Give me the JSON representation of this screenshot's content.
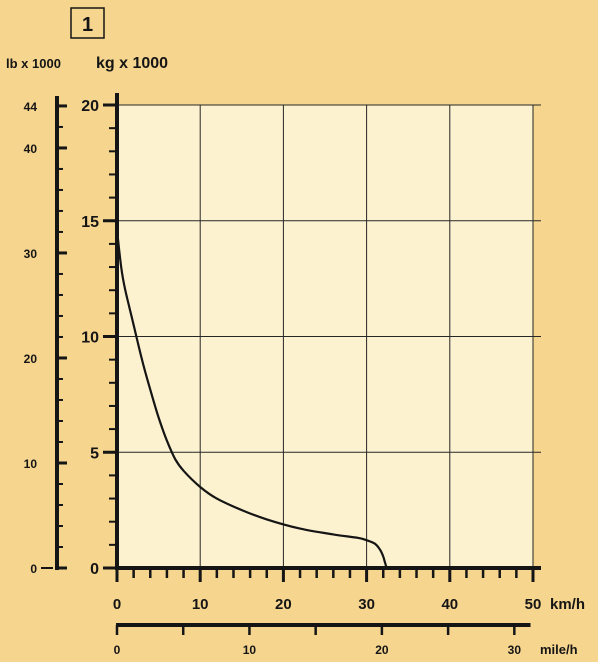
{
  "figure_number": "1",
  "colors": {
    "background": "#f6d58f",
    "plot_area": "#fdf2d0",
    "axis": "#151515",
    "grid": "#262626",
    "curve": "#151515"
  },
  "chart_data": {
    "type": "line",
    "title": "",
    "primary_y": {
      "unit_label": "kg x 1000",
      "range": [
        0,
        20
      ],
      "major_ticks": [
        0,
        5,
        10,
        15,
        20
      ],
      "tick_labels": [
        "0",
        "5",
        "10",
        "15",
        "20"
      ],
      "minor_step": 1
    },
    "secondary_y": {
      "unit_label": "lb x 1000",
      "range": [
        0,
        44.09
      ],
      "labeled_ticks": [
        0,
        10,
        20,
        30,
        40,
        44
      ],
      "tick_labels": [
        "0",
        "10",
        "20",
        "30",
        "40",
        "44"
      ],
      "minor_step": 2
    },
    "primary_x": {
      "unit_label": "km/h",
      "range": [
        0,
        50
      ],
      "major_ticks": [
        0,
        10,
        20,
        30,
        40,
        50
      ],
      "tick_labels": [
        "0",
        "10",
        "20",
        "30",
        "40",
        "50"
      ],
      "minor_step": 2
    },
    "secondary_x": {
      "unit_label": "mile/h",
      "range": [
        0,
        31.07
      ],
      "labeled_ticks": [
        0,
        10,
        20,
        30
      ],
      "tick_labels": [
        "0",
        "10",
        "20",
        "30"
      ],
      "minor_step": 5
    },
    "grid": true,
    "series": [
      {
        "x": [
          0,
          0.5,
          1,
          2,
          3,
          4,
          5,
          6,
          7,
          8,
          10,
          12,
          15,
          18,
          22,
          26,
          29,
          30,
          31,
          31.6,
          32,
          32.2,
          32.4
        ],
        "y": [
          14.6,
          13.0,
          12.0,
          10.5,
          9.0,
          7.7,
          6.5,
          5.5,
          4.7,
          4.2,
          3.5,
          3.0,
          2.5,
          2.1,
          1.7,
          1.45,
          1.3,
          1.2,
          1.05,
          0.8,
          0.5,
          0.25,
          0
        ]
      }
    ]
  }
}
